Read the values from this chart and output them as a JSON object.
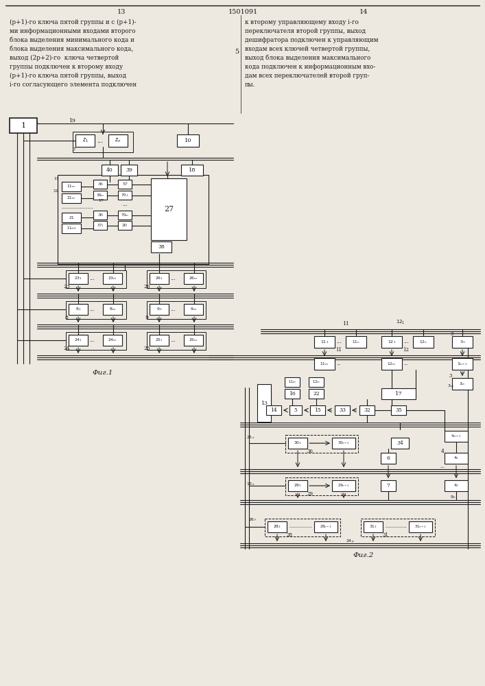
{
  "title": "1501091",
  "page_left": "13",
  "page_right": "14",
  "text_left": "(р+1)-го ключа пятой группы и с (р+1)-\nми информационными входами второго\nблока выделения минимального кода и\nблока выделения максимального кода,\nвыход (2р+2)-го  ключа четвертой\nгруппы подключен к второму входу\n(р+1)-го ключа пятой группы, выход\ni-го согласующего элемента подключен",
  "text_right": "к второму управляющему входу i-го\nпереключателя второй группы, выход\nдешифратора подключен к управляющим\nвходам всех ключей четвертой группы,\nвыход блока выделения максимального\nкода подключен к информационным вхо-\nдам всех переключателей второй груп-\nпы.",
  "fig1_label": "Фиг.1",
  "fig2_label": "Фиг.2",
  "bg_color": "#ede8e0",
  "line_color": "#1a1a1a",
  "box_color": "#ffffff"
}
